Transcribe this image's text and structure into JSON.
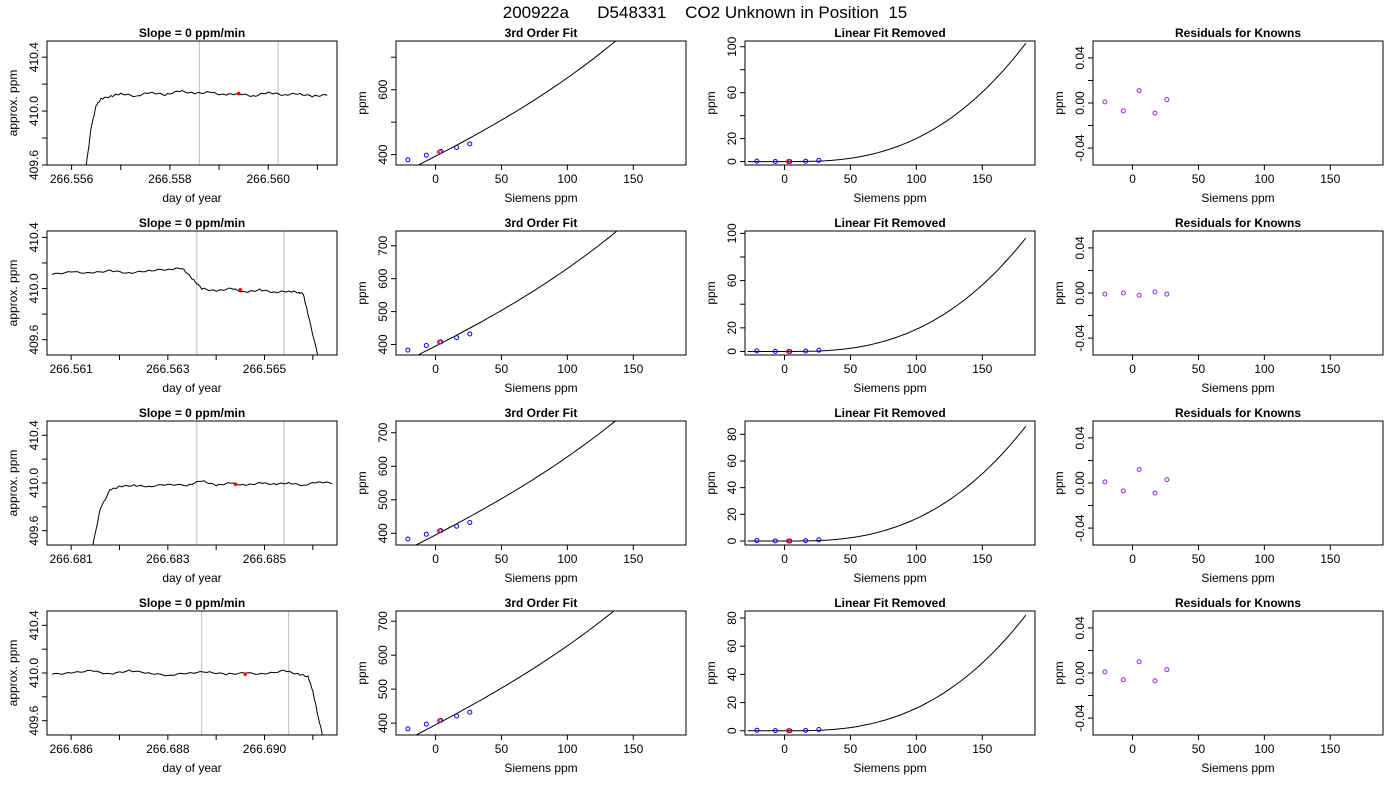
{
  "figure_title": "200922a      D548331    CO2 Unknown in Position  15",
  "colors": {
    "trace": "#000000",
    "vline": "#bebebe",
    "known": "#0000ff",
    "unknown": "#ff0000",
    "residual": "#a020f0",
    "fit": "#000000"
  },
  "chart_data": [
    {
      "type": "line",
      "row": 0,
      "col": 0,
      "title": "Slope =  0  ppm/min",
      "xlabel": "day of year",
      "ylabel": "approx. ppm",
      "xlim": [
        266.5555,
        266.5614
      ],
      "ylim": [
        409.6,
        410.52
      ],
      "xticks": [
        266.556,
        266.557,
        266.558,
        266.559,
        266.56,
        266.561
      ],
      "xticklabels": [
        "266.556",
        "",
        "266.558",
        "",
        "266.560",
        ""
      ],
      "yticks": [
        409.6,
        409.8,
        410.0,
        410.2,
        410.4
      ],
      "yticklabels": [
        "409.6",
        "",
        "410.0",
        "",
        "410.4"
      ],
      "vlines": [
        266.5586,
        266.5602
      ],
      "marker": {
        "x": 266.5594,
        "y": 410.13
      },
      "x": [
        266.5563,
        266.5564,
        266.5565,
        266.5566,
        266.5568,
        266.557,
        266.5573,
        266.5576,
        266.5579,
        266.5582,
        266.5585,
        266.5588,
        266.5591,
        266.5594,
        266.5597,
        266.56,
        266.5603,
        266.5606,
        266.5609,
        266.5612
      ],
      "y": [
        409.6,
        409.88,
        410.04,
        410.09,
        410.11,
        410.13,
        410.11,
        410.14,
        410.12,
        410.15,
        410.13,
        410.14,
        410.12,
        410.13,
        410.11,
        410.14,
        410.12,
        410.13,
        410.11,
        410.12
      ]
    },
    {
      "type": "line",
      "row": 0,
      "col": 1,
      "title": "3rd Order Fit",
      "xlabel": "Siemens ppm",
      "ylabel": "ppm",
      "xlim": [
        -30,
        190
      ],
      "ylim": [
        368,
        750
      ],
      "xticks": [
        0,
        50,
        100,
        150
      ],
      "xticklabels": [
        "0",
        "50",
        "100",
        "150"
      ],
      "yticks": [
        400,
        500,
        600,
        700
      ],
      "yticklabels": [
        "400",
        "",
        "600",
        ""
      ],
      "fit": {
        "x0": 395,
        "a": 2.1,
        "b": 0.0018,
        "c": 1.35e-05,
        "xmin": -28,
        "xmax": 183
      },
      "knowns": {
        "x": [
          -21,
          -7,
          4,
          16,
          26
        ],
        "y": [
          384,
          398,
          410,
          422,
          433
        ]
      },
      "unknown": {
        "x": 3,
        "y": 408
      }
    },
    {
      "type": "line",
      "row": 0,
      "col": 2,
      "title": "Linear Fit Removed",
      "xlabel": "Siemens ppm",
      "ylabel": "ppm",
      "xlim": [
        -30,
        190
      ],
      "ylim": [
        -3,
        105
      ],
      "xticks": [
        0,
        50,
        100,
        150
      ],
      "xticklabels": [
        "0",
        "50",
        "100",
        "150"
      ],
      "yticks": [
        0,
        20,
        40,
        60,
        80,
        100
      ],
      "yticklabels": [
        "0",
        "20",
        "",
        "60",
        "",
        "100"
      ],
      "curve": {
        "ymax": 103,
        "xmin": -28,
        "xmax": 183
      },
      "knowns": {
        "x": [
          -21,
          -7,
          4,
          16,
          26
        ],
        "y": [
          0.4,
          0.1,
          0,
          0.3,
          1.0
        ]
      },
      "unknown": {
        "x": 3,
        "y": 0
      }
    },
    {
      "type": "scatter",
      "row": 0,
      "col": 3,
      "title": "Residuals for Knowns",
      "xlabel": "Siemens ppm",
      "ylabel": "ppm",
      "xlim": [
        -30,
        190
      ],
      "ylim": [
        -0.055,
        0.055
      ],
      "xticks": [
        0,
        50,
        100,
        150
      ],
      "xticklabels": [
        "0",
        "50",
        "100",
        "150"
      ],
      "yticks": [
        -0.04,
        -0.02,
        0,
        0.02,
        0.04
      ],
      "yticklabels": [
        "-0.04",
        "",
        "0.00",
        "",
        "0.04"
      ],
      "x": [
        -21,
        -7,
        5,
        17,
        26
      ],
      "y": [
        0.001,
        -0.007,
        0.011,
        -0.009,
        0.003
      ]
    },
    {
      "type": "line",
      "row": 1,
      "col": 0,
      "title": "Slope =  0  ppm/min",
      "xlabel": "day of year",
      "ylabel": "approx. ppm",
      "xlim": [
        266.5605,
        266.5665
      ],
      "ylim": [
        409.48,
        410.45
      ],
      "xticks": [
        266.561,
        266.562,
        266.563,
        266.564,
        266.565,
        266.566
      ],
      "xticklabels": [
        "266.561",
        "",
        "266.563",
        "",
        "266.565",
        ""
      ],
      "yticks": [
        409.6,
        409.8,
        410.0,
        410.2,
        410.4
      ],
      "yticklabels": [
        "409.6",
        "",
        "410.0",
        "",
        "410.4"
      ],
      "vlines": [
        266.5636,
        266.5654
      ],
      "marker": {
        "x": 266.5645,
        "y": 409.99
      },
      "x": [
        266.5606,
        266.561,
        266.5614,
        266.5618,
        266.5622,
        266.5626,
        266.563,
        266.5633,
        266.5635,
        266.5637,
        266.564,
        266.5643,
        266.5646,
        266.5649,
        266.5652,
        266.5655,
        266.5657,
        266.5658,
        266.5659,
        266.5661
      ],
      "y": [
        410.11,
        410.13,
        410.12,
        410.14,
        410.12,
        410.14,
        410.15,
        410.16,
        410.08,
        410.0,
        409.98,
        410.0,
        409.97,
        409.99,
        409.97,
        409.98,
        409.97,
        409.96,
        409.8,
        409.48
      ]
    },
    {
      "type": "line",
      "row": 1,
      "col": 1,
      "title": "3rd Order Fit",
      "xlabel": "Siemens ppm",
      "ylabel": "ppm",
      "xlim": [
        -30,
        190
      ],
      "ylim": [
        368,
        745
      ],
      "xticks": [
        0,
        50,
        100,
        150
      ],
      "xticklabels": [
        "0",
        "50",
        "100",
        "150"
      ],
      "yticks": [
        400,
        500,
        600,
        700
      ],
      "yticklabels": [
        "400",
        "500",
        "600",
        "700"
      ],
      "fit": {
        "x0": 395,
        "a": 2.05,
        "b": 0.0018,
        "c": 1.3e-05,
        "xmin": -28,
        "xmax": 183
      },
      "knowns": {
        "x": [
          -21,
          -7,
          4,
          16,
          26
        ],
        "y": [
          383,
          397,
          408,
          421,
          432
        ]
      },
      "unknown": {
        "x": 3,
        "y": 407
      }
    },
    {
      "type": "line",
      "row": 1,
      "col": 2,
      "title": "Linear Fit Removed",
      "xlabel": "Siemens ppm",
      "ylabel": "ppm",
      "xlim": [
        -30,
        190
      ],
      "ylim": [
        -3,
        102
      ],
      "xticks": [
        0,
        50,
        100,
        150
      ],
      "xticklabels": [
        "0",
        "50",
        "100",
        "150"
      ],
      "yticks": [
        0,
        20,
        40,
        60,
        80,
        100
      ],
      "yticklabels": [
        "0",
        "20",
        "",
        "60",
        "",
        "100"
      ],
      "curve": {
        "ymax": 96,
        "xmin": -28,
        "xmax": 183
      },
      "knowns": {
        "x": [
          -21,
          -7,
          4,
          16,
          26
        ],
        "y": [
          0.5,
          0.1,
          0,
          0.3,
          1.0
        ]
      },
      "unknown": {
        "x": 3,
        "y": 0
      }
    },
    {
      "type": "scatter",
      "row": 1,
      "col": 3,
      "title": "Residuals for Knowns",
      "xlabel": "Siemens ppm",
      "ylabel": "ppm",
      "xlim": [
        -30,
        190
      ],
      "ylim": [
        -0.055,
        0.055
      ],
      "xticks": [
        0,
        50,
        100,
        150
      ],
      "xticklabels": [
        "0",
        "50",
        "100",
        "150"
      ],
      "yticks": [
        -0.04,
        -0.02,
        0,
        0.02,
        0.04
      ],
      "yticklabels": [
        "-0.04",
        "",
        "0.00",
        "",
        "0.04"
      ],
      "x": [
        -21,
        -7,
        5,
        17,
        26
      ],
      "y": [
        -0.001,
        0.0,
        -0.002,
        0.001,
        -0.001
      ]
    },
    {
      "type": "line",
      "row": 2,
      "col": 0,
      "title": "Slope =  0  ppm/min",
      "xlabel": "day of year",
      "ylabel": "approx. ppm",
      "xlim": [
        266.6805,
        266.6865
      ],
      "ylim": [
        409.48,
        410.52
      ],
      "xticks": [
        266.681,
        266.682,
        266.683,
        266.684,
        266.685,
        266.686
      ],
      "xticklabels": [
        "266.681",
        "",
        "266.683",
        "",
        "266.685",
        ""
      ],
      "yticks": [
        409.6,
        409.8,
        410.0,
        410.2,
        410.4
      ],
      "yticklabels": [
        "409.6",
        "",
        "410.0",
        "",
        "410.4"
      ],
      "vlines": [
        266.6836,
        266.6854
      ],
      "marker": {
        "x": 266.6844,
        "y": 409.99
      },
      "x": [
        266.68145,
        266.6816,
        266.6818,
        266.682,
        266.6823,
        266.6826,
        266.683,
        266.6834,
        266.6837,
        266.684,
        266.6843,
        266.6846,
        266.6849,
        266.6852,
        266.6855,
        266.6858,
        266.6861,
        266.6864
      ],
      "y": [
        409.48,
        409.78,
        409.94,
        409.97,
        409.98,
        409.97,
        409.99,
        409.98,
        410.02,
        409.98,
        410.0,
        409.98,
        410.0,
        409.99,
        410.0,
        409.98,
        410.01,
        410.0
      ]
    },
    {
      "type": "line",
      "row": 2,
      "col": 1,
      "title": "3rd Order Fit",
      "xlabel": "Siemens ppm",
      "ylabel": "ppm",
      "xlim": [
        -30,
        190
      ],
      "ylim": [
        365,
        735
      ],
      "xticks": [
        0,
        50,
        100,
        150
      ],
      "xticklabels": [
        "0",
        "50",
        "100",
        "150"
      ],
      "yticks": [
        400,
        500,
        600,
        700
      ],
      "yticklabels": [
        "400",
        "500",
        "600",
        "700"
      ],
      "fit": {
        "x0": 395,
        "a": 2.05,
        "b": 0.0016,
        "c": 1.2e-05,
        "xmin": -28,
        "xmax": 183
      },
      "knowns": {
        "x": [
          -21,
          -7,
          4,
          16,
          26
        ],
        "y": [
          383,
          397,
          408,
          421,
          432
        ]
      },
      "unknown": {
        "x": 3,
        "y": 407
      }
    },
    {
      "type": "line",
      "row": 2,
      "col": 2,
      "title": "Linear Fit Removed",
      "xlabel": "Siemens ppm",
      "ylabel": "ppm",
      "xlim": [
        -30,
        190
      ],
      "ylim": [
        -3,
        90
      ],
      "xticks": [
        0,
        50,
        100,
        150
      ],
      "xticklabels": [
        "0",
        "50",
        "100",
        "150"
      ],
      "yticks": [
        0,
        20,
        40,
        60,
        80
      ],
      "yticklabels": [
        "0",
        "20",
        "40",
        "60",
        "80"
      ],
      "curve": {
        "ymax": 86,
        "xmin": -28,
        "xmax": 183
      },
      "knowns": {
        "x": [
          -21,
          -7,
          4,
          16,
          26
        ],
        "y": [
          0.4,
          0.1,
          0,
          0.3,
          0.9
        ]
      },
      "unknown": {
        "x": 3,
        "y": 0
      }
    },
    {
      "type": "scatter",
      "row": 2,
      "col": 3,
      "title": "Residuals for Knowns",
      "xlabel": "Siemens ppm",
      "ylabel": "ppm",
      "xlim": [
        -30,
        190
      ],
      "ylim": [
        -0.055,
        0.055
      ],
      "xticks": [
        0,
        50,
        100,
        150
      ],
      "xticklabels": [
        "0",
        "50",
        "100",
        "150"
      ],
      "yticks": [
        -0.04,
        -0.02,
        0,
        0.02,
        0.04
      ],
      "yticklabels": [
        "-0.04",
        "",
        "0.00",
        "",
        "0.04"
      ],
      "x": [
        -21,
        -7,
        5,
        17,
        26
      ],
      "y": [
        0.001,
        -0.007,
        0.012,
        -0.009,
        0.003
      ]
    },
    {
      "type": "line",
      "row": 3,
      "col": 0,
      "title": "Slope =  0  ppm/min",
      "xlabel": "day of year",
      "ylabel": "approx. ppm",
      "xlim": [
        266.6855,
        266.6915
      ],
      "ylim": [
        409.48,
        410.52
      ],
      "xticks": [
        266.686,
        266.687,
        266.688,
        266.689,
        266.69,
        266.691
      ],
      "xticklabels": [
        "266.686",
        "",
        "266.688",
        "",
        "266.690",
        ""
      ],
      "yticks": [
        409.6,
        409.8,
        410.0,
        410.2,
        410.4
      ],
      "yticklabels": [
        "409.6",
        "",
        "410.0",
        "",
        "410.4"
      ],
      "vlines": [
        266.6887,
        266.6905
      ],
      "marker": {
        "x": 266.6896,
        "y": 409.99
      },
      "x": [
        266.6856,
        266.686,
        266.6864,
        266.6868,
        266.6872,
        266.6876,
        266.688,
        266.6884,
        266.6888,
        266.6892,
        266.6896,
        266.69,
        266.6904,
        266.6907,
        266.6909,
        266.691,
        266.6911,
        266.6912
      ],
      "y": [
        409.99,
        410.0,
        410.02,
        409.99,
        410.02,
        410.0,
        409.98,
        410.0,
        410.01,
        409.99,
        410.0,
        409.99,
        410.02,
        409.99,
        409.97,
        409.85,
        409.65,
        409.48
      ]
    },
    {
      "type": "line",
      "row": 3,
      "col": 1,
      "title": "3rd Order Fit",
      "xlabel": "Siemens ppm",
      "ylabel": "ppm",
      "xlim": [
        -30,
        190
      ],
      "ylim": [
        365,
        730
      ],
      "xticks": [
        0,
        50,
        100,
        150
      ],
      "xticklabels": [
        "0",
        "50",
        "100",
        "150"
      ],
      "yticks": [
        400,
        500,
        600,
        700
      ],
      "yticklabels": [
        "400",
        "500",
        "600",
        "700"
      ],
      "fit": {
        "x0": 395,
        "a": 2.05,
        "b": 0.0016,
        "c": 1.15e-05,
        "xmin": -28,
        "xmax": 183
      },
      "knowns": {
        "x": [
          -21,
          -7,
          4,
          16,
          26
        ],
        "y": [
          383,
          397,
          408,
          421,
          432
        ]
      },
      "unknown": {
        "x": 3,
        "y": 407
      }
    },
    {
      "type": "line",
      "row": 3,
      "col": 2,
      "title": "Linear Fit Removed",
      "xlabel": "Siemens ppm",
      "ylabel": "ppm",
      "xlim": [
        -30,
        190
      ],
      "ylim": [
        -3,
        85
      ],
      "xticks": [
        0,
        50,
        100,
        150
      ],
      "xticklabels": [
        "0",
        "50",
        "100",
        "150"
      ],
      "yticks": [
        0,
        20,
        40,
        60,
        80
      ],
      "yticklabels": [
        "0",
        "20",
        "40",
        "60",
        "80"
      ],
      "curve": {
        "ymax": 82,
        "xmin": -28,
        "xmax": 183
      },
      "knowns": {
        "x": [
          -21,
          -7,
          4,
          16,
          26
        ],
        "y": [
          0.4,
          0.1,
          0,
          0.3,
          0.9
        ]
      },
      "unknown": {
        "x": 3,
        "y": 0
      }
    },
    {
      "type": "scatter",
      "row": 3,
      "col": 3,
      "title": "Residuals for Knowns",
      "xlabel": "Siemens ppm",
      "ylabel": "ppm",
      "xlim": [
        -30,
        190
      ],
      "ylim": [
        -0.055,
        0.055
      ],
      "xticks": [
        0,
        50,
        100,
        150
      ],
      "xticklabels": [
        "0",
        "50",
        "100",
        "150"
      ],
      "yticks": [
        -0.04,
        -0.02,
        0,
        0.02,
        0.04
      ],
      "yticklabels": [
        "-0.04",
        "",
        "0.00",
        "",
        "0.04"
      ],
      "x": [
        -21,
        -7,
        5,
        17,
        26
      ],
      "y": [
        0.001,
        -0.006,
        0.01,
        -0.007,
        0.003
      ]
    }
  ]
}
